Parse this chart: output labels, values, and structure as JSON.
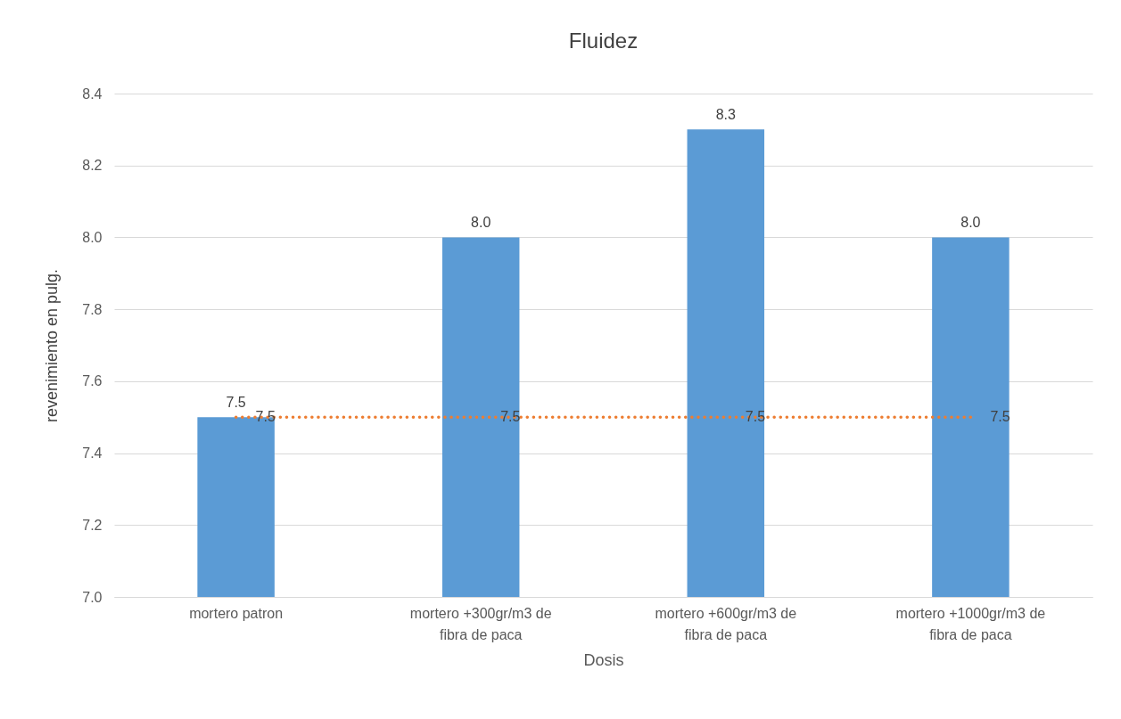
{
  "chart_data": {
    "type": "bar",
    "title": "Fluidez",
    "xlabel": "Dosis",
    "ylabel": "revenimiento en pulg.",
    "categories": [
      "mortero patron",
      "mortero +300gr/m3  de fibra de paca",
      "mortero +600gr/m3  de fibra de paca",
      "mortero +1000gr/m3  de fibra de paca"
    ],
    "series": [
      {
        "color": "#5b9bd5",
        "values": [
          7.5,
          8.0,
          8.3,
          8.0
        ],
        "value_labels": [
          "7.5",
          "8.0",
          "8.3",
          "8.0"
        ]
      },
      {
        "type": "line",
        "color": "#ed7d31",
        "values": [
          7.5,
          7.5,
          7.5,
          7.5
        ],
        "value_labels": [
          "7.5",
          "7.5",
          "7.5",
          "7.5"
        ],
        "line_style": "dotted",
        "marker": "none"
      }
    ],
    "ylim": [
      7.0,
      8.4
    ],
    "yticks": [
      {
        "value": 7.0,
        "label": "7.0"
      },
      7.2,
      7.4,
      7.6,
      7.8,
      {
        "value": 8.0,
        "label": "8.0"
      },
      8.2,
      8.4
    ],
    "grid": "y"
  }
}
